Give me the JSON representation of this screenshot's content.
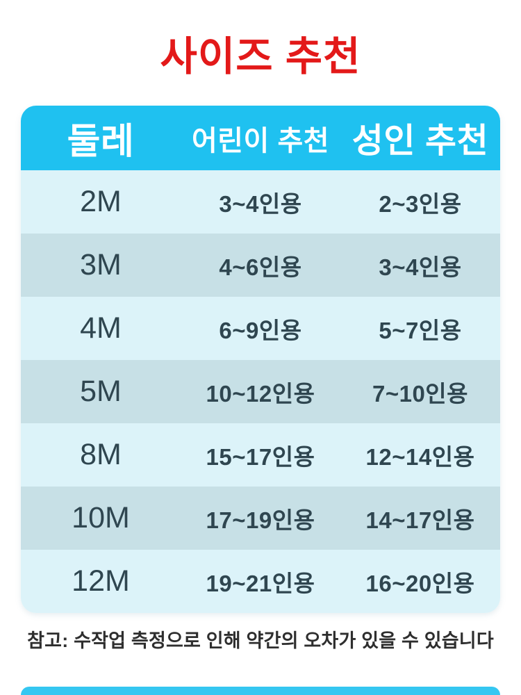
{
  "title": "사이즈 추천",
  "table": {
    "headers": {
      "size": "둘레",
      "children": "어린이 추천",
      "adult": "성인 추천"
    },
    "rows": [
      {
        "size": "2M",
        "children": "3~4인용",
        "adult": "2~3인용"
      },
      {
        "size": "3M",
        "children": "4~6인용",
        "adult": "3~4인용"
      },
      {
        "size": "4M",
        "children": "6~9인용",
        "adult": "5~7인용"
      },
      {
        "size": "5M",
        "children": "10~12인용",
        "adult": "7~10인용"
      },
      {
        "size": "8M",
        "children": "15~17인용",
        "adult": "12~14인용"
      },
      {
        "size": "10M",
        "children": "17~19인용",
        "adult": "14~17인용"
      },
      {
        "size": "12M",
        "children": "19~21인용",
        "adult": "16~20인용"
      }
    ]
  },
  "note": "참고: 수작업 측정으로 인해 약간의 오차가 있을 수 있습니다",
  "colors": {
    "title_red": "#e31919",
    "header_cyan": "#1fc1f0",
    "row_light": "#dcf3f9",
    "row_dark": "#c7e0e6",
    "cell_text": "#2f4650",
    "note_text": "#2e2e2e"
  },
  "chart_data": {
    "type": "table",
    "title": "사이즈 추천",
    "columns": [
      "둘레",
      "어린이 추천",
      "성인 추천"
    ],
    "rows": [
      [
        "2M",
        "3~4인용",
        "2~3인용"
      ],
      [
        "3M",
        "4~6인용",
        "3~4인용"
      ],
      [
        "4M",
        "6~9인용",
        "5~7인용"
      ],
      [
        "5M",
        "10~12인용",
        "7~10인용"
      ],
      [
        "8M",
        "15~17인용",
        "12~14인용"
      ],
      [
        "10M",
        "17~19인용",
        "14~17인용"
      ],
      [
        "12M",
        "19~21인용",
        "16~20인용"
      ]
    ],
    "note": "참고: 수작업 측정으로 인해 약간의 오차가 있을 수 있습니다",
    "layout_hints": {
      "header_background": "#1fc1f0",
      "alternating_row_colors": [
        "#dcf3f9",
        "#c7e0e6"
      ],
      "title_color": "#e31919"
    }
  }
}
